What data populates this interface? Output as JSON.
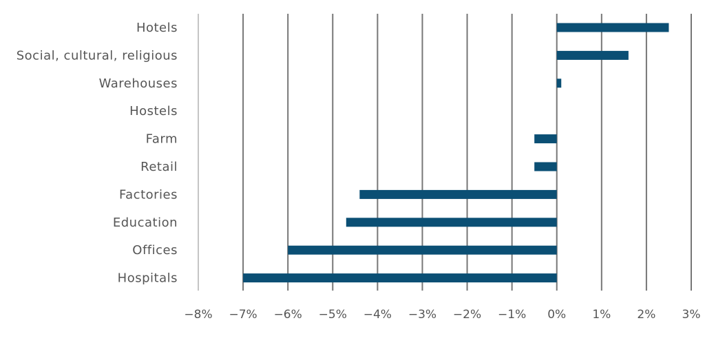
{
  "chart_data": {
    "type": "bar",
    "orientation": "horizontal",
    "title": "",
    "xlabel": "",
    "ylabel": "",
    "categories": [
      "Hotels",
      "Social, cultural, religious",
      "Warehouses",
      "Hostels",
      "Farm",
      "Retail",
      "Factories",
      "Education",
      "Offices",
      "Hospitals"
    ],
    "values": [
      2.5,
      1.6,
      0.1,
      0.0,
      -0.5,
      -0.5,
      -4.4,
      -4.7,
      -6.0,
      -7.0
    ],
    "xlim": [
      -8,
      3
    ],
    "xticks": [
      -8,
      -7,
      -6,
      -5,
      -4,
      -3,
      -2,
      -1,
      0,
      1,
      2,
      3
    ],
    "xtick_labels": [
      "−8%",
      "−7%",
      "−6%",
      "−5%",
      "−4%",
      "−3%",
      "−2%",
      "−1%",
      "0%",
      "1%",
      "2%",
      "3%"
    ],
    "grid": "vertical",
    "legend": "none",
    "bar_color": "#0b4f74"
  }
}
